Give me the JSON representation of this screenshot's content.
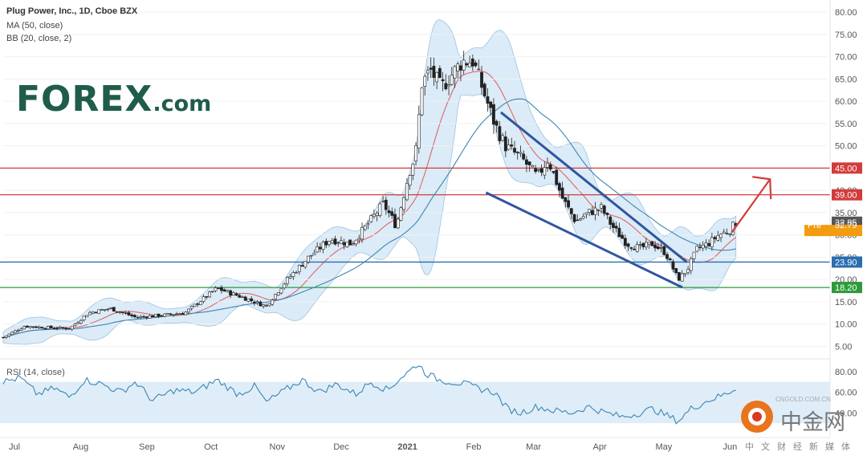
{
  "header": {
    "title": "Plug Power, Inc., 1D, Cboe BZX",
    "ma_label": "MA (50, close)",
    "bb_label": "BB (20, close, 2)"
  },
  "logo": {
    "main": "FOREX",
    "suffix": ".com"
  },
  "rsi": {
    "label": "RSI (14, close)"
  },
  "watermark": {
    "name": "中金网",
    "sub": "中文财经新媒体",
    "url": "CNGOLD.COM.CN"
  },
  "chart_data": {
    "type": "line",
    "colors": {
      "candle": "#222222",
      "ma50": "#3b87b0",
      "bb_mid": "#e05a5a",
      "bb_fill": "#cfe4f5",
      "resistance": "#d23c3c",
      "support_blue": "#2a6db0",
      "support_green": "#2e9a3a",
      "channel": "#2f56a0",
      "arrow": "#d23c3c",
      "rsi_line": "#3b87b0",
      "rsi_band": "#d7e9f7"
    },
    "price_axis": {
      "ticks": [
        5,
        10,
        15,
        20,
        25,
        30,
        35,
        40,
        45,
        50,
        55,
        60,
        65,
        70,
        75,
        80
      ],
      "min": 2,
      "max": 82
    },
    "rsi_axis": {
      "ticks": [
        40,
        60,
        80
      ],
      "min": 20,
      "max": 90
    },
    "months": [
      {
        "label": "Jul",
        "day": 0
      },
      {
        "label": "Aug",
        "day": 31
      },
      {
        "label": "Sep",
        "day": 62
      },
      {
        "label": "Oct",
        "day": 92
      },
      {
        "label": "Nov",
        "day": 123
      },
      {
        "label": "Dec",
        "day": 153
      },
      {
        "label": "2021",
        "day": 184
      },
      {
        "label": "Feb",
        "day": 215
      },
      {
        "label": "Mar",
        "day": 243
      },
      {
        "label": "Apr",
        "day": 274
      },
      {
        "label": "May",
        "day": 304
      },
      {
        "label": "Jun",
        "day": 335
      }
    ],
    "close_series": [
      [
        0,
        7.0
      ],
      [
        10,
        9.5
      ],
      [
        20,
        9.2
      ],
      [
        31,
        9.0
      ],
      [
        40,
        12.5
      ],
      [
        50,
        13.5
      ],
      [
        62,
        11.5
      ],
      [
        75,
        12.0
      ],
      [
        85,
        12.5
      ],
      [
        100,
        18.0
      ],
      [
        112,
        16.0
      ],
      [
        123,
        14.0
      ],
      [
        133,
        20.0
      ],
      [
        143,
        25.0
      ],
      [
        153,
        29.0
      ],
      [
        163,
        28.0
      ],
      [
        170,
        32.0
      ],
      [
        178,
        37.0
      ],
      [
        184,
        32.0
      ],
      [
        190,
        44.0
      ],
      [
        193,
        48.0
      ],
      [
        196,
        64.0
      ],
      [
        200,
        67.0
      ],
      [
        205,
        63.0
      ],
      [
        210,
        66.0
      ],
      [
        215,
        69.0
      ],
      [
        220,
        69.0
      ],
      [
        225,
        62.0
      ],
      [
        230,
        55.0
      ],
      [
        235,
        50.0
      ],
      [
        243,
        47.0
      ],
      [
        250,
        43.0
      ],
      [
        255,
        47.0
      ],
      [
        262,
        38.0
      ],
      [
        268,
        33.0
      ],
      [
        274,
        35.0
      ],
      [
        280,
        36.0
      ],
      [
        285,
        32.0
      ],
      [
        292,
        28.0
      ],
      [
        298,
        27.0
      ],
      [
        304,
        28.0
      ],
      [
        310,
        26.0
      ],
      [
        316,
        20.0
      ],
      [
        320,
        22.0
      ],
      [
        325,
        27.0
      ],
      [
        330,
        28.0
      ],
      [
        335,
        30.0
      ],
      [
        340,
        31.0
      ],
      [
        343,
        32.8
      ]
    ],
    "price_levels": [
      {
        "value": 45.0,
        "label": "45.00",
        "color": "#d23c3c"
      },
      {
        "value": 39.0,
        "label": "39.00",
        "color": "#d23c3c"
      },
      {
        "value": 23.9,
        "label": "23.90",
        "color": "#2a6db0"
      },
      {
        "value": 18.2,
        "label": "18.20",
        "color": "#2e9a3a"
      }
    ],
    "last_price": {
      "label": "32.85",
      "value": 32.85
    },
    "pre_market": {
      "tag": "Pre",
      "label": "32.79",
      "value": 32.79
    },
    "channel_upper": [
      [
        233,
        57.5
      ],
      [
        320,
        23.9
      ]
    ],
    "channel_lower": [
      [
        226,
        39.5
      ],
      [
        318,
        18.2
      ]
    ],
    "rsi_series": [
      [
        0,
        70
      ],
      [
        8,
        74
      ],
      [
        16,
        58
      ],
      [
        24,
        64
      ],
      [
        31,
        55
      ],
      [
        38,
        72
      ],
      [
        46,
        68
      ],
      [
        55,
        60
      ],
      [
        62,
        70
      ],
      [
        70,
        52
      ],
      [
        80,
        62
      ],
      [
        90,
        60
      ],
      [
        100,
        72
      ],
      [
        110,
        58
      ],
      [
        118,
        66
      ],
      [
        123,
        50
      ],
      [
        132,
        62
      ],
      [
        140,
        72
      ],
      [
        148,
        60
      ],
      [
        156,
        68
      ],
      [
        165,
        58
      ],
      [
        172,
        70
      ],
      [
        180,
        62
      ],
      [
        186,
        74
      ],
      [
        190,
        80
      ],
      [
        194,
        88
      ],
      [
        198,
        78
      ],
      [
        204,
        72
      ],
      [
        210,
        70
      ],
      [
        216,
        68
      ],
      [
        222,
        64
      ],
      [
        230,
        60
      ],
      [
        236,
        44
      ],
      [
        242,
        40
      ],
      [
        250,
        46
      ],
      [
        258,
        42
      ],
      [
        266,
        40
      ],
      [
        274,
        46
      ],
      [
        282,
        40
      ],
      [
        290,
        36
      ],
      [
        298,
        40
      ],
      [
        304,
        44
      ],
      [
        310,
        38
      ],
      [
        316,
        32
      ],
      [
        322,
        44
      ],
      [
        330,
        52
      ],
      [
        338,
        58
      ],
      [
        343,
        64
      ]
    ]
  }
}
